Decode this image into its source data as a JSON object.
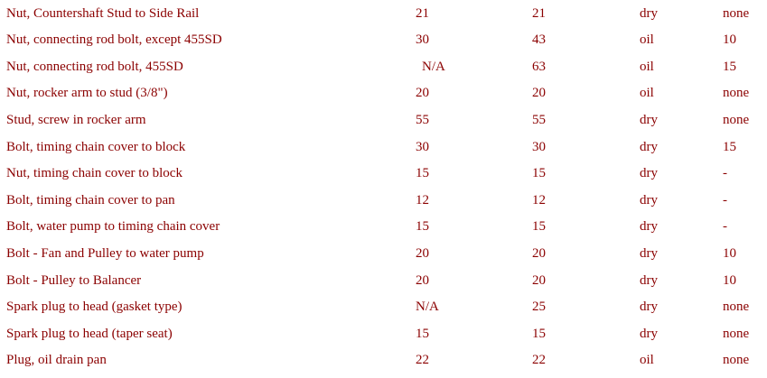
{
  "rows": [
    [
      "Nut, Countershaft Stud to Side Rail",
      "21",
      "21",
      "dry",
      "none"
    ],
    [
      "Nut, connecting rod bolt, except 455SD",
      "30",
      "43",
      "oil",
      "10"
    ],
    [
      "Nut, connecting rod bolt, 455SD",
      "N/A",
      "63",
      "oil",
      "15"
    ],
    [
      "Nut, rocker arm to stud (3/8\")",
      "20",
      "20",
      "oil",
      "none"
    ],
    [
      "Stud, screw in rocker arm",
      "55",
      "55",
      "dry",
      "none"
    ],
    [
      "Bolt, timing chain cover to block",
      "30",
      "30",
      "dry",
      "15"
    ],
    [
      "Nut, timing chain cover to block",
      "15",
      "15",
      "dry",
      "-"
    ],
    [
      "Bolt, timing chain cover to pan",
      "12",
      "12",
      "dry",
      "-"
    ],
    [
      "Bolt, water pump to timing chain cover",
      "15",
      "15",
      "dry",
      "-"
    ],
    [
      "Bolt - Fan and Pulley to water pump",
      "20",
      "20",
      "dry",
      "10"
    ],
    [
      "Bolt - Pulley to Balancer",
      "20",
      "20",
      "dry",
      "10"
    ],
    [
      "Spark plug to head (gasket type)",
      "N/A",
      "25",
      "dry",
      "none"
    ],
    [
      "Spark plug to head (taper seat)",
      "15",
      "15",
      "dry",
      "none"
    ],
    [
      "Plug, oil drain pan",
      "22",
      "22",
      "oil",
      "none"
    ]
  ],
  "colors": {
    "text": "#8b0000",
    "background": "#ffffff"
  }
}
